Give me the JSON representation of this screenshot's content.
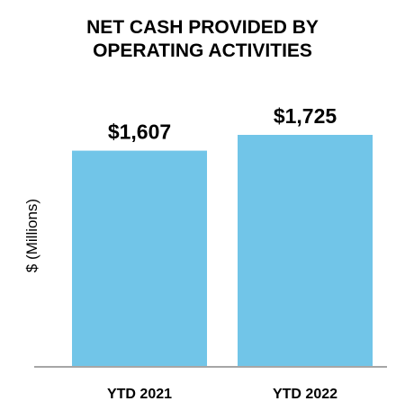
{
  "chart_data": {
    "type": "bar",
    "title_lines": [
      "NET CASH PROVIDED BY",
      "OPERATING ACTIVITIES"
    ],
    "title": "NET CASH PROVIDED BY OPERATING ACTIVITIES",
    "categories": [
      "YTD 2021",
      "YTD 2022"
    ],
    "values": [
      1607,
      1725
    ],
    "data_labels": [
      "$1,607",
      "$1,725"
    ],
    "xlabel": "",
    "ylabel": "$ (Millions)",
    "ylim": [
      0,
      1725
    ],
    "grid": false,
    "legend": "none",
    "colors": {
      "bar": "#71c5e8",
      "axis": "#a6a6a6"
    }
  }
}
